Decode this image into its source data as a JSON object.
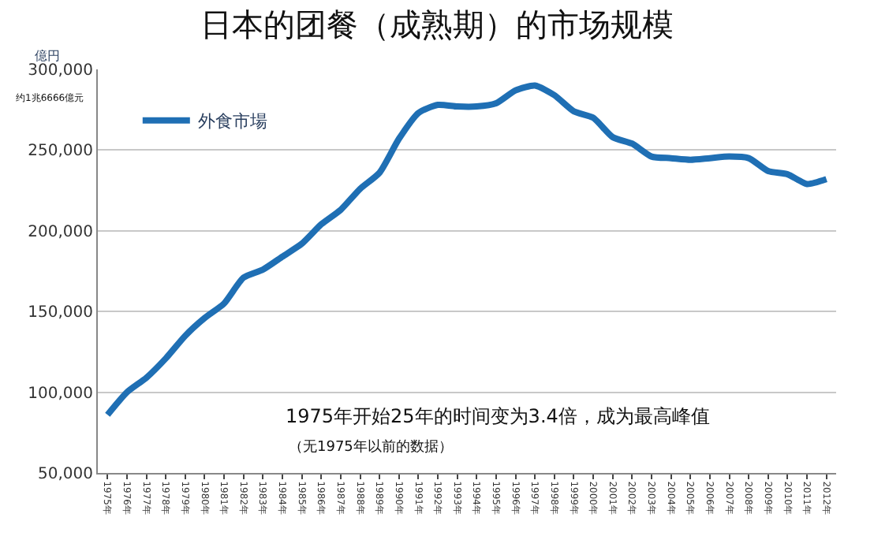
{
  "chart_data": {
    "type": "line",
    "title": "日本的团餐（成熟期）的市场规模",
    "ylabel": "億円",
    "categories": [
      "1975年",
      "1976年",
      "1977年",
      "1978年",
      "1979年",
      "1980年",
      "1981年",
      "1982年",
      "1983年",
      "1984年",
      "1985年",
      "1986年",
      "1987年",
      "1988年",
      "1989年",
      "1990年",
      "1991年",
      "1992年",
      "1993年",
      "1994年",
      "1995年",
      "1996年",
      "1997年",
      "1998年",
      "1999年",
      "2000年",
      "2001年",
      "2002年",
      "2003年",
      "2004年",
      "2005年",
      "2006年",
      "2007年",
      "2008年",
      "2009年",
      "2010年",
      "2011年",
      "2012年"
    ],
    "series": [
      {
        "name": "外食市場",
        "color": "#1f6fb4",
        "values": [
          86000,
          100000,
          109000,
          121000,
          135000,
          146000,
          155000,
          171000,
          176000,
          184000,
          192000,
          204000,
          213000,
          226000,
          236000,
          257000,
          273000,
          278000,
          277000,
          277000,
          279000,
          287000,
          290000,
          284000,
          274000,
          270000,
          258000,
          254000,
          246000,
          245000,
          244000,
          245000,
          246000,
          245000,
          237000,
          235000,
          229000,
          232000
        ]
      }
    ],
    "ylim": [
      50000,
      300000
    ],
    "yticks": [
      {
        "value": 50000,
        "label": "50,000"
      },
      {
        "value": 100000,
        "label": "100,000"
      },
      {
        "value": 150000,
        "label": "150,000"
      },
      {
        "value": 200000,
        "label": "200,000"
      },
      {
        "value": 250000,
        "label": "250,000"
      },
      {
        "value": 300000,
        "label": "300,000"
      }
    ],
    "grid": "y",
    "legend": "top left",
    "marker": "none",
    "line_style": "solid",
    "annotations": [
      "约1兆6666億元",
      "1975年开始25年的时间变为3.4倍，成为最高峰值",
      "（无1975年以前的数据）"
    ]
  }
}
